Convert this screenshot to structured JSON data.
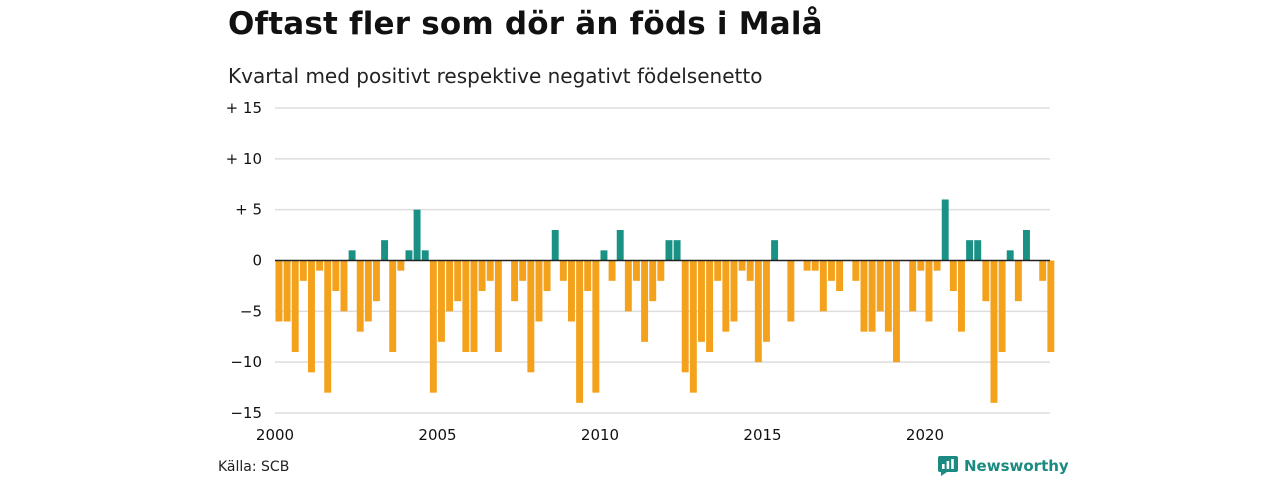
{
  "chart_data": {
    "type": "bar",
    "title": "Oftast fler som dör än föds i Malå",
    "subtitle": "Kvartal med positivt respektive negativt födelsenetto",
    "source": "Källa: SCB",
    "brand": "Newsworthy",
    "x_start_year": 2000,
    "periods_per_year": 4,
    "x_ticks": [
      "2000",
      "2005",
      "2010",
      "2015",
      "2020"
    ],
    "y_ticks": [
      {
        "value": 15,
        "label": "+ 15"
      },
      {
        "value": 10,
        "label": "+ 10"
      },
      {
        "value": 5,
        "label": "+  5"
      },
      {
        "value": 0,
        "label": "0"
      },
      {
        "value": -5,
        "label": "−5"
      },
      {
        "value": -10,
        "label": "−10"
      },
      {
        "value": -15,
        "label": "−15"
      }
    ],
    "ylim": [
      -15,
      15
    ],
    "grid": true,
    "colors": {
      "positive": "#1a9185",
      "negative": "#f4a11c",
      "grid": "#dddddd",
      "zero": "#222222"
    },
    "values": [
      -6,
      -6,
      -9,
      -2,
      -11,
      -1,
      -13,
      -3,
      -5,
      1,
      -7,
      -6,
      -4,
      2,
      -9,
      -1,
      1,
      5,
      1,
      -13,
      -8,
      -5,
      -4,
      -9,
      -9,
      -3,
      -2,
      -9,
      0,
      -4,
      -2,
      -11,
      -6,
      -3,
      3,
      -2,
      -6,
      -14,
      -3,
      -13,
      1,
      -2,
      3,
      -5,
      -2,
      -8,
      -4,
      -2,
      2,
      2,
      -11,
      -13,
      -8,
      -9,
      -2,
      -7,
      -6,
      -1,
      -2,
      -10,
      -8,
      2,
      0,
      -6,
      0,
      -1,
      -1,
      -5,
      -2,
      -3,
      0,
      -2,
      -7,
      -7,
      -5,
      -7,
      -10,
      0,
      -5,
      -1,
      -6,
      -1,
      6,
      -3,
      -7,
      2,
      2,
      -4,
      -14,
      -9,
      1,
      -4,
      3,
      0,
      -2,
      -9
    ]
  }
}
